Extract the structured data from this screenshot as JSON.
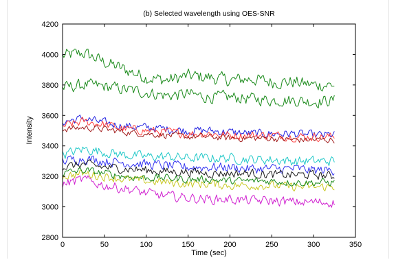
{
  "chart_data": {
    "type": "line",
    "title": "(b) Selected wavelength using OES-SNR",
    "xlabel": "Time (sec)",
    "ylabel": "Intensity",
    "xlim": [
      0,
      350
    ],
    "ylim": [
      2800,
      4200
    ],
    "xticks": [
      0,
      50,
      100,
      150,
      200,
      250,
      300,
      350
    ],
    "yticks": [
      2800,
      3000,
      3200,
      3400,
      3600,
      3800,
      4000,
      4200
    ],
    "grid": false,
    "legend": "none",
    "series": [
      {
        "color": "#1a8a1a",
        "x": [
          0,
          25,
          50,
          75,
          100,
          125,
          150,
          175,
          200,
          225,
          250,
          275,
          300,
          326
        ],
        "values": [
          3990,
          4010,
          3950,
          3900,
          3850,
          3830,
          3860,
          3850,
          3830,
          3840,
          3820,
          3820,
          3800,
          3800
        ],
        "noise": 60
      },
      {
        "color": "#1a8a1a",
        "x": [
          0,
          25,
          50,
          75,
          100,
          125,
          150,
          175,
          200,
          225,
          250,
          275,
          300,
          326
        ],
        "values": [
          3780,
          3800,
          3790,
          3770,
          3750,
          3730,
          3740,
          3720,
          3720,
          3710,
          3700,
          3700,
          3690,
          3700
        ],
        "noise": 55
      },
      {
        "color": "#2020e0",
        "x": [
          0,
          25,
          50,
          75,
          100,
          125,
          150,
          175,
          200,
          225,
          250,
          275,
          300,
          326
        ],
        "values": [
          3560,
          3580,
          3550,
          3530,
          3520,
          3510,
          3500,
          3500,
          3490,
          3480,
          3480,
          3480,
          3470,
          3470
        ],
        "noise": 40
      },
      {
        "color": "#ff4040",
        "x": [
          0,
          25,
          50,
          75,
          100,
          125,
          150,
          175,
          200,
          225,
          250,
          275,
          300,
          326
        ],
        "values": [
          3530,
          3560,
          3540,
          3510,
          3500,
          3490,
          3480,
          3480,
          3470,
          3470,
          3470,
          3460,
          3460,
          3460
        ],
        "noise": 40
      },
      {
        "color": "#a01a1a",
        "x": [
          0,
          25,
          50,
          75,
          100,
          125,
          150,
          175,
          200,
          225,
          250,
          275,
          300,
          326
        ],
        "values": [
          3510,
          3520,
          3510,
          3490,
          3480,
          3470,
          3460,
          3460,
          3450,
          3450,
          3450,
          3440,
          3440,
          3440
        ],
        "noise": 30
      },
      {
        "color": "#20c8c8",
        "x": [
          0,
          25,
          50,
          75,
          100,
          125,
          150,
          175,
          200,
          225,
          250,
          275,
          300,
          326
        ],
        "values": [
          3340,
          3380,
          3360,
          3340,
          3330,
          3330,
          3320,
          3320,
          3320,
          3310,
          3310,
          3300,
          3300,
          3300
        ],
        "noise": 45
      },
      {
        "color": "#3030f0",
        "x": [
          0,
          25,
          50,
          75,
          100,
          125,
          150,
          175,
          200,
          225,
          250,
          275,
          300,
          326
        ],
        "values": [
          3300,
          3320,
          3300,
          3290,
          3280,
          3270,
          3260,
          3260,
          3260,
          3250,
          3250,
          3250,
          3240,
          3240
        ],
        "noise": 45
      },
      {
        "color": "#1a1a1a",
        "x": [
          0,
          25,
          50,
          75,
          100,
          125,
          150,
          175,
          200,
          225,
          250,
          275,
          300,
          326
        ],
        "values": [
          3260,
          3280,
          3260,
          3250,
          3240,
          3230,
          3230,
          3220,
          3220,
          3220,
          3210,
          3210,
          3210,
          3200
        ],
        "noise": 40
      },
      {
        "color": "#c8c820",
        "x": [
          0,
          25,
          50,
          75,
          100,
          125,
          150,
          175,
          200,
          225,
          250,
          275,
          300,
          326
        ],
        "values": [
          3200,
          3220,
          3200,
          3180,
          3170,
          3160,
          3150,
          3150,
          3140,
          3140,
          3140,
          3130,
          3130,
          3130
        ],
        "noise": 40
      },
      {
        "color": "#1a8a1a",
        "x": [
          0,
          25,
          50,
          75,
          100,
          125,
          150,
          175,
          200,
          225,
          250,
          275,
          300,
          326
        ],
        "values": [
          3220,
          3240,
          3220,
          3200,
          3190,
          3190,
          3180,
          3180,
          3170,
          3170,
          3170,
          3160,
          3160,
          3160
        ],
        "noise": 35
      },
      {
        "color": "#d020d0",
        "x": [
          0,
          25,
          50,
          75,
          100,
          125,
          150,
          175,
          200,
          225,
          250,
          275,
          300,
          326
        ],
        "values": [
          3150,
          3180,
          3140,
          3120,
          3090,
          3070,
          3060,
          3050,
          3050,
          3040,
          3040,
          3030,
          3030,
          3030
        ],
        "noise": 45
      }
    ]
  }
}
